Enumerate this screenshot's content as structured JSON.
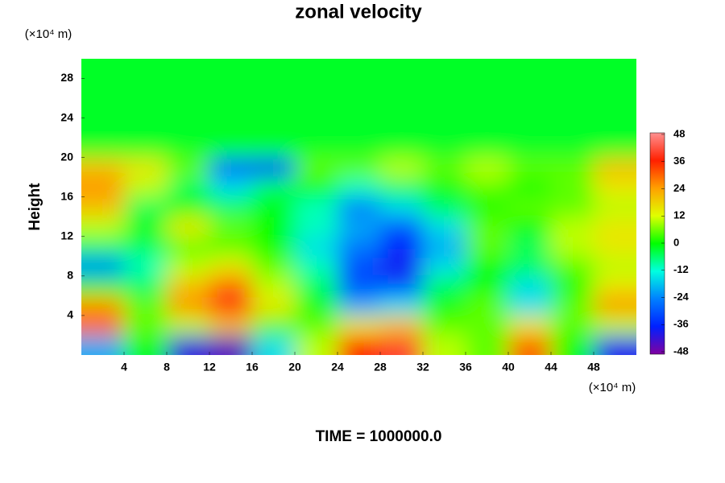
{
  "chart_data": {
    "type": "contour",
    "title": "zonal velocity",
    "ylabel": "Height",
    "yunit": "(×10⁴ m)",
    "xunit": "(×10⁴ m)",
    "annotation": "TIME = 1000000.0",
    "xlim": [
      0,
      52
    ],
    "ylim": [
      0,
      30
    ],
    "xticks": [
      4,
      8,
      12,
      16,
      20,
      24,
      28,
      32,
      36,
      40,
      44,
      48
    ],
    "yticks": [
      4,
      8,
      12,
      16,
      20,
      24,
      28
    ],
    "xbins": [
      0,
      4,
      8,
      12,
      16,
      20,
      24,
      28,
      32,
      36,
      40,
      44,
      48,
      52
    ],
    "ybins": [
      0,
      2,
      4,
      6,
      8,
      10,
      12,
      14,
      16,
      18,
      20,
      22,
      24,
      26,
      28,
      30
    ],
    "z": [
      [
        -20,
        0,
        -40,
        -44,
        -15,
        10,
        36,
        40,
        10,
        5,
        30,
        0,
        -38
      ],
      [
        30,
        5,
        10,
        20,
        5,
        5,
        15,
        20,
        5,
        5,
        15,
        5,
        10
      ],
      [
        25,
        5,
        25,
        38,
        15,
        0,
        -20,
        -15,
        0,
        5,
        -15,
        5,
        25
      ],
      [
        0,
        -5,
        20,
        30,
        10,
        -5,
        -30,
        -30,
        -5,
        0,
        -15,
        0,
        15
      ],
      [
        -25,
        -10,
        10,
        15,
        5,
        -10,
        -30,
        -38,
        -15,
        0,
        -5,
        5,
        10
      ],
      [
        -5,
        -5,
        5,
        5,
        0,
        -15,
        -25,
        -36,
        -20,
        5,
        -5,
        10,
        15
      ],
      [
        10,
        0,
        15,
        5,
        0,
        -10,
        -20,
        -30,
        -15,
        5,
        0,
        10,
        15
      ],
      [
        20,
        -5,
        0,
        -5,
        0,
        -10,
        -25,
        -15,
        -5,
        0,
        5,
        5,
        10
      ],
      [
        25,
        10,
        -5,
        -15,
        -5,
        0,
        -10,
        -5,
        0,
        5,
        0,
        5,
        15
      ],
      [
        20,
        15,
        5,
        -30,
        -35,
        5,
        5,
        10,
        5,
        10,
        5,
        5,
        20
      ],
      [
        -2,
        -2,
        -2,
        -2,
        -2,
        -2,
        -2,
        -2,
        -2,
        -2,
        -2,
        -2,
        -2
      ],
      [
        -2,
        -2,
        -2,
        -2,
        -2,
        -2,
        -2,
        -2,
        -2,
        -2,
        -2,
        -2,
        -2
      ],
      [
        -2,
        -2,
        -2,
        -2,
        -2,
        -2,
        -2,
        -2,
        -2,
        -2,
        -2,
        -2,
        -2
      ],
      [
        -2,
        -2,
        -2,
        -2,
        -2,
        -2,
        -2,
        -2,
        -2,
        -2,
        -2,
        -2,
        -2
      ],
      [
        -2,
        -2,
        -2,
        -2,
        -2,
        -2,
        -2,
        -2,
        -2,
        -2,
        -2,
        -2,
        -2
      ]
    ],
    "clim": [
      -48,
      48
    ],
    "cticks": [
      48,
      36,
      24,
      12,
      0,
      -12,
      -24,
      -36,
      -48
    ],
    "colors": [
      "#8000a0",
      "#0020ff",
      "#0080ff",
      "#00ffe0",
      "#00ff00",
      "#e0ff00",
      "#ffa000",
      "#ff2000",
      "#ff9090"
    ]
  }
}
